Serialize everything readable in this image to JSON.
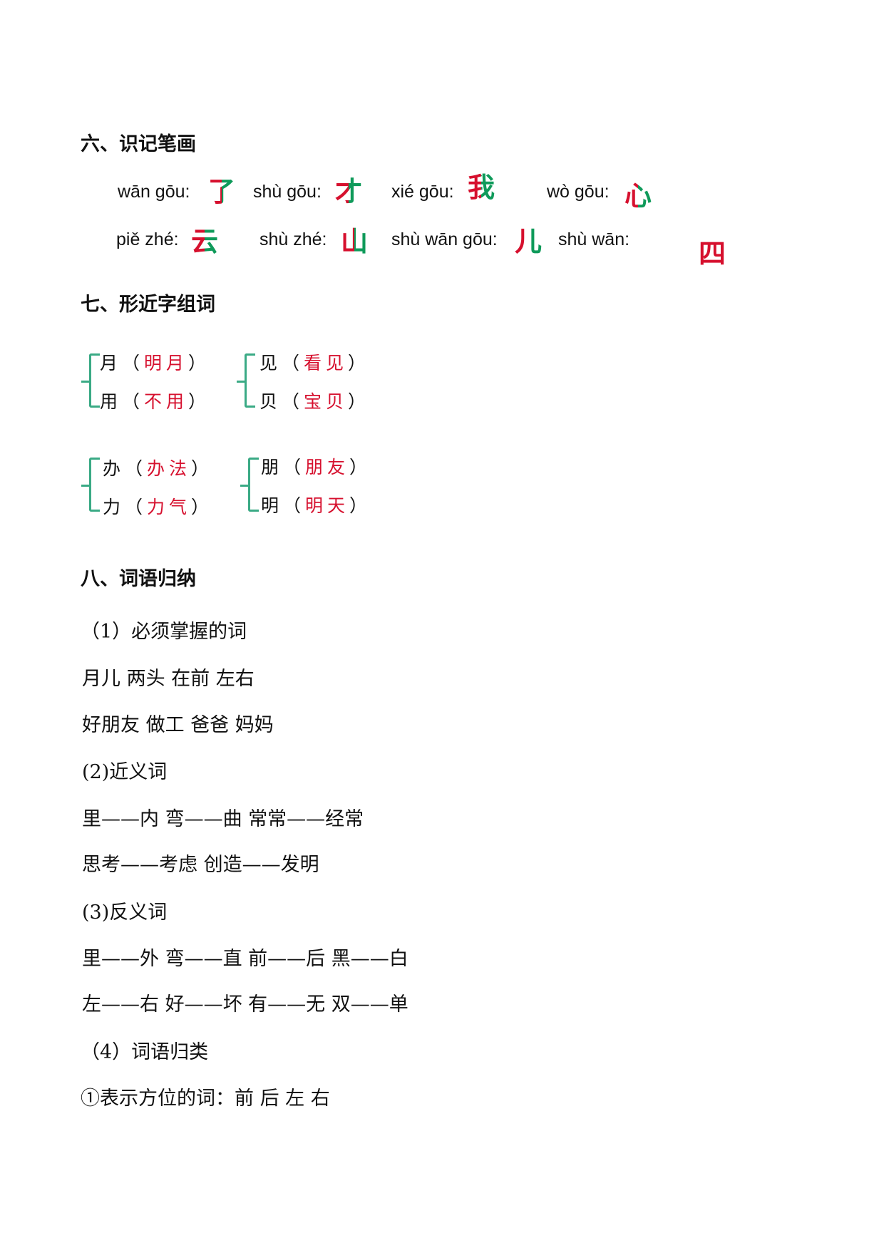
{
  "section6": {
    "title": "六、识记笔画",
    "rows": [
      [
        {
          "pinyin": "wān gōu:",
          "char": "了"
        },
        {
          "pinyin": "shù gōu:",
          "char": "才"
        },
        {
          "pinyin": "xié gōu:",
          "char": "我"
        },
        {
          "pinyin": "wò gōu:",
          "char": "心"
        }
      ],
      [
        {
          "pinyin": "piě zhé:",
          "char": "云"
        },
        {
          "pinyin": "shù zhé:",
          "char": "山"
        },
        {
          "pinyin": "shù wān gōu:",
          "char": "儿"
        },
        {
          "pinyin": "shù wān:",
          "char": "四"
        }
      ]
    ]
  },
  "section7": {
    "title": "七、形近字组词",
    "groups": [
      [
        {
          "char": "月",
          "word": "明月"
        },
        {
          "char": "用",
          "word": "不用"
        }
      ],
      [
        {
          "char": "见",
          "word": "看见"
        },
        {
          "char": "贝",
          "word": "宝贝"
        }
      ],
      [
        {
          "char": "办",
          "word": "办法"
        },
        {
          "char": "力",
          "word": "力气"
        }
      ],
      [
        {
          "char": "朋",
          "word": "朋友"
        },
        {
          "char": "明",
          "word": "明天"
        }
      ]
    ]
  },
  "section8": {
    "title": "八、词语归纳",
    "lines": [
      "（1）必须掌握的词",
      "月儿  两头  在前  左右",
      "好朋友  做工  爸爸  妈妈",
      "(2)近义词",
      "里——内    弯——曲    常常——经常",
      "思考——考虑    创造——发明",
      "(3)反义词",
      "里——外  弯——直  前——后  黑——白",
      "左——右  好——坏  有——无  双——单",
      "（4）词语归类",
      "①表示方位的词：前  后  左  右"
    ]
  },
  "colors": {
    "answer": "#d6102e",
    "stroke_highlight": "#0f9a5a",
    "brace": "#3aaa85"
  }
}
